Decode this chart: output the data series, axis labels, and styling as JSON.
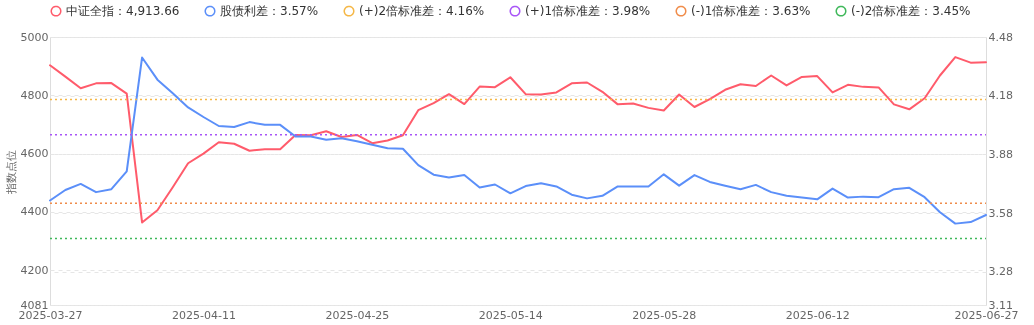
{
  "chart_data": {
    "type": "line",
    "categories": [
      "2025-03-27",
      null,
      null,
      null,
      null,
      null,
      null,
      null,
      null,
      null,
      "2025-04-11",
      null,
      null,
      null,
      null,
      null,
      null,
      null,
      null,
      null,
      "2025-04-25",
      null,
      null,
      null,
      null,
      null,
      null,
      null,
      null,
      null,
      "2025-05-14",
      null,
      null,
      null,
      null,
      null,
      null,
      null,
      null,
      null,
      "2025-05-28",
      null,
      null,
      null,
      null,
      null,
      null,
      null,
      null,
      null,
      "2025-06-12",
      null,
      null,
      null,
      null,
      null,
      null,
      null,
      null,
      null,
      null,
      "2025-06-27"
    ],
    "series": [
      {
        "name": "中证全指：4,913.66",
        "color": "#ff5b6b",
        "values": [
          4903,
          4864,
          4824,
          4841,
          4842,
          4806,
          4364,
          4406,
          4485,
          4567,
          4600,
          4639,
          4634,
          4610,
          4615,
          4615,
          4664,
          4663,
          4677,
          4657,
          4664,
          4636,
          4645,
          4663,
          4749,
          4773,
          4804,
          4770,
          4830,
          4828,
          4862,
          4804,
          4803,
          4810,
          4841,
          4844,
          4812,
          4769,
          4772,
          4757,
          4748,
          4803,
          4760,
          4787,
          4819,
          4838,
          4832,
          4868,
          4834,
          4863,
          4866,
          4810,
          4836,
          4829,
          4827,
          4769,
          4752,
          4790,
          4868,
          4931,
          4912,
          4913.66
        ]
      },
      {
        "name": "股债利差：3.57%",
        "color": "#5b8ff9",
        "axis": "y2",
        "values": [
          3.644,
          3.698,
          3.729,
          3.687,
          3.702,
          3.793,
          4.375,
          4.262,
          4.193,
          4.12,
          4.071,
          4.025,
          4.02,
          4.045,
          4.031,
          4.031,
          3.971,
          3.971,
          3.955,
          3.962,
          3.947,
          3.929,
          3.911,
          3.909,
          3.825,
          3.776,
          3.762,
          3.775,
          3.711,
          3.726,
          3.681,
          3.718,
          3.732,
          3.716,
          3.674,
          3.655,
          3.668,
          3.716,
          3.716,
          3.716,
          3.778,
          3.72,
          3.774,
          3.739,
          3.72,
          3.702,
          3.724,
          3.687,
          3.668,
          3.659,
          3.65,
          3.705,
          3.659,
          3.664,
          3.661,
          3.702,
          3.709,
          3.661,
          3.584,
          3.526,
          3.534,
          3.57
        ]
      }
    ],
    "ref_lines": [
      {
        "axis": "y2",
        "value": 4.16,
        "label": "(+)2倍标准差：4.16%",
        "color": "#f5b746",
        "line_style": "dotted"
      },
      {
        "axis": "y2",
        "value": 3.98,
        "label": "(+)1倍标准差：3.98%",
        "color": "#a855f7",
        "line_style": "dotted"
      },
      {
        "axis": "y2",
        "value": 3.63,
        "label": "(-)1倍标准差：3.63%",
        "color": "#f08c4a",
        "line_style": "dotted"
      },
      {
        "axis": "y2",
        "value": 3.45,
        "label": "(-)2倍标准差：3.45%",
        "color": "#3fb85a",
        "line_style": "dotted"
      }
    ],
    "ylabel": "指数点位",
    "ylim": [
      4081,
      5000
    ],
    "yticks": [
      4081,
      4200,
      4400,
      4600,
      4800,
      5000
    ],
    "y2lim": [
      3.11,
      4.48
    ],
    "y2ticks": [
      3.11,
      3.28,
      3.58,
      3.88,
      4.18,
      4.48
    ],
    "grid": "y",
    "legend": "top"
  }
}
